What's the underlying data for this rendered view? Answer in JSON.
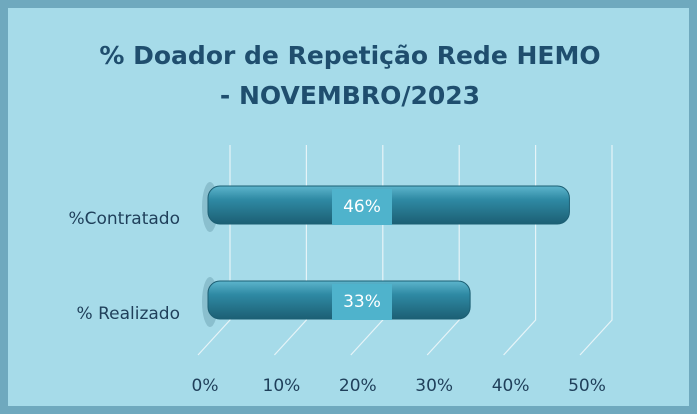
{
  "chart_data": {
    "type": "bar",
    "orientation": "horizontal",
    "title": "% Doador de Repetição Rede HEMO - NOVEMBRO/2023",
    "categories": [
      "%Contratado",
      "% Realizado"
    ],
    "values": [
      46,
      33
    ],
    "value_labels": [
      "46%",
      "33%"
    ],
    "color": "#2a7f98",
    "xlim": [
      0,
      50
    ],
    "xticks": [
      {
        "value": 0,
        "label": "0%"
      },
      {
        "value": 10,
        "label": "10%"
      },
      {
        "value": 20,
        "label": "20%"
      },
      {
        "value": 30,
        "label": "30%"
      },
      {
        "value": 40,
        "label": "40%"
      },
      {
        "value": 50,
        "label": "50%"
      }
    ],
    "grid": true
  }
}
